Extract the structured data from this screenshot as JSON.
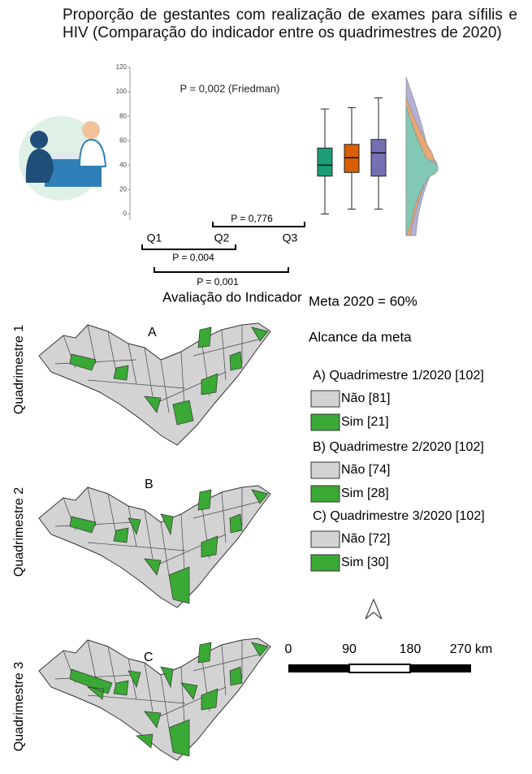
{
  "title": "Proporção de gestantes com realização de exames para sífilis e HIV (Comparação do indicador entre os quadrimestres de 2020)",
  "chart_data": {
    "type": "box",
    "annotation": "P = 0,002 (Friedman)",
    "categories": [
      "Q1",
      "Q2",
      "Q3"
    ],
    "boxes": [
      {
        "min": 0,
        "q1": 31,
        "median": 40,
        "q3": 54,
        "max": 86,
        "color": "#1b9e77"
      },
      {
        "min": 4,
        "q1": 34,
        "median": 46,
        "q3": 57,
        "max": 87,
        "color": "#d95f02"
      },
      {
        "min": 4,
        "q1": 31,
        "median": 50,
        "q3": 61,
        "max": 95,
        "color": "#7570b3"
      }
    ],
    "ylim": [
      -5,
      120
    ],
    "yticks": [
      0,
      20,
      40,
      60,
      80,
      100,
      120
    ],
    "comparisons": [
      "P = 0,776",
      "P = 0,004",
      "P = 0,001"
    ]
  },
  "map": {
    "title": "Avaliação do Indicador",
    "rows": [
      {
        "label": "Quadrimestre 1",
        "letter": "A"
      },
      {
        "label": "Quadrimestre 2",
        "letter": "B"
      },
      {
        "label": "Quadrimestre 3",
        "letter": "C"
      }
    ]
  },
  "legend": {
    "goal": "Meta 2020 = 60%",
    "heading": "Alcance da meta",
    "groups": [
      {
        "title": "A) Quadrimestre 1/2020 [102]",
        "items": [
          "Não [81]",
          "Sim [21]"
        ]
      },
      {
        "title": "B) Quadrimestre  2/2020 [102]",
        "items": [
          "Não [74]",
          "Sim [28]"
        ]
      },
      {
        "title": "C) Quadrimestre 3/2020 [102]",
        "items": [
          "Não [72]",
          "Sim [30]"
        ]
      }
    ]
  },
  "scale_bar": [
    "0",
    "90",
    "180",
    "270 km"
  ]
}
